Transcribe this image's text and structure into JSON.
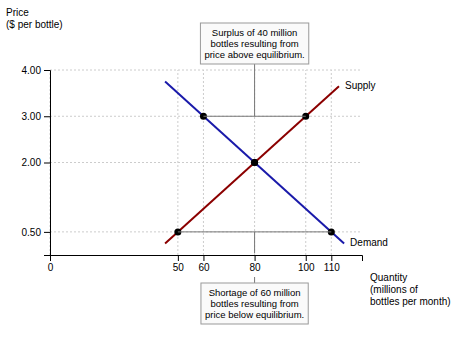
{
  "chart_data": {
    "type": "line",
    "x_label": "Quantity\n(millions of\nbottles per month)",
    "y_label": "Price\n($ per bottle)",
    "series": [
      {
        "name": "Supply",
        "type": "line",
        "color": "#8B0000",
        "x": [
          45,
          113
        ],
        "values": [
          0.25,
          3.65
        ]
      },
      {
        "name": "Demand",
        "type": "line",
        "color": "#1a1aaa",
        "x": [
          45,
          115
        ],
        "values": [
          3.75,
          0.25
        ]
      },
      {
        "type": "scatter",
        "marker": "circle",
        "color": "#000000",
        "x": [
          50,
          80,
          100
        ],
        "values": [
          0.5,
          2.0,
          3.0
        ]
      },
      {
        "type": "scatter",
        "marker": "circle",
        "color": "#000000",
        "x": [
          60,
          80,
          110
        ],
        "values": [
          3.0,
          2.0,
          0.5
        ]
      }
    ],
    "xlim": [
      0,
      122
    ],
    "xticks": [
      0,
      50,
      60,
      80,
      100,
      110
    ],
    "ylim": [
      0,
      4
    ],
    "yticks": [
      {
        "value": 0.5,
        "label": "0.50"
      },
      {
        "value": 2.0,
        "label": "2.00"
      },
      {
        "value": 3.0,
        "label": "3.00"
      },
      {
        "value": 4.0,
        "label": "4.00"
      }
    ],
    "grid": true,
    "annotations": [
      {
        "text": "Surplus of 40 million\nbottles resulting from\nprice above equilibrium.",
        "x": [
          60,
          100
        ],
        "y": 3.0
      },
      {
        "text": "Shortage of 60 million\nbottles resulting from\nprice below equilibrium.",
        "x": [
          50,
          110
        ],
        "y": 0.5
      }
    ]
  }
}
